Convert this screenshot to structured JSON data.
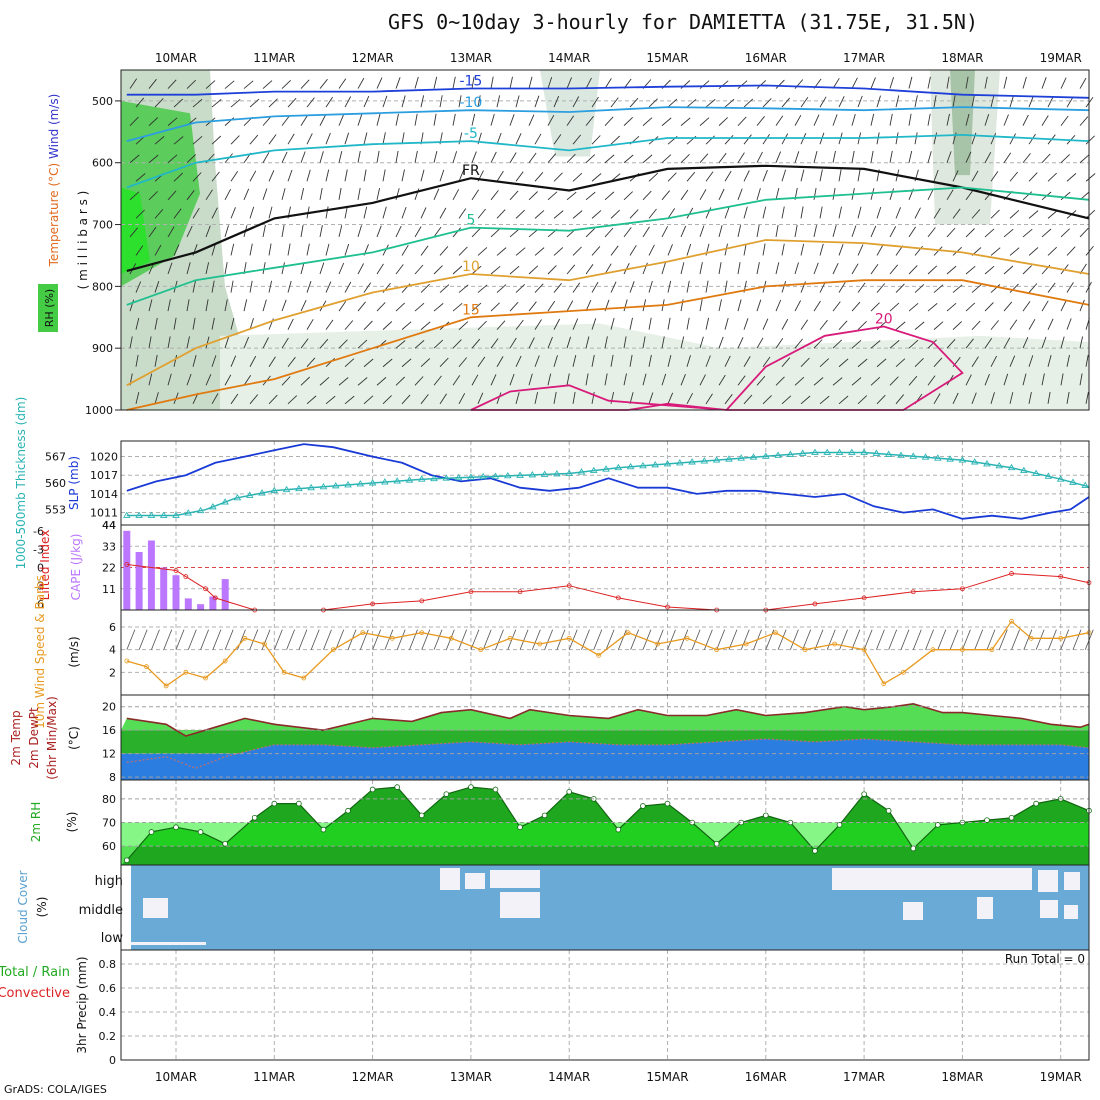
{
  "title": "GFS 0~10day 3-hourly for DAMIETTA (31.75E, 31.5N)",
  "credit": "GrADS: COLA/IGES",
  "colors": {
    "rh_green": "#33cc33",
    "temp_orange": "#e08a1e",
    "slp_blue": "#1a3ad6",
    "thickness_cyan": "#2ab3b3",
    "cape_purple": "#bb77ff",
    "li_red": "#dd2222",
    "wind_orange": "#e89a20",
    "cloud_blue": "#6aaad6",
    "cloud_white": "#f2f2f8",
    "rh2m_dark": "#1fa81f",
    "rh2m_light": "#44ee44"
  },
  "chart_data": [
    {
      "type": "line",
      "panel": "upper_air",
      "dates": [
        "10MAR",
        "11MAR",
        "12MAR",
        "13MAR",
        "14MAR",
        "15MAR",
        "16MAR",
        "17MAR",
        "18MAR",
        "19MAR"
      ],
      "ylabel_parts": [
        "RH (%)",
        "Temperature (°C)",
        "Wind (m/s)"
      ],
      "yunit": "( m i l l i b a r s )",
      "yticks": [
        "500",
        "600",
        "700",
        "800",
        "900",
        "1000"
      ],
      "ylim": [
        1000,
        450
      ],
      "contours": [
        {
          "name": "-15",
          "color": "#1e40d8",
          "x": [
            9.5,
            10.2,
            11,
            12,
            13,
            14,
            15,
            16,
            17,
            18,
            19.3
          ],
          "y": [
            490,
            490,
            485,
            485,
            480,
            480,
            477,
            475,
            480,
            490,
            495
          ]
        },
        {
          "name": "-10",
          "color": "#2b9ee0",
          "x": [
            9.5,
            10.2,
            11,
            12,
            13,
            14,
            15,
            16,
            17,
            18,
            19.3
          ],
          "y": [
            565,
            535,
            525,
            520,
            515,
            518,
            510,
            512,
            515,
            510,
            515
          ]
        },
        {
          "name": "-5",
          "color": "#20b8c8",
          "x": [
            9.5,
            10.2,
            11,
            12,
            13,
            14,
            15,
            16,
            17,
            18,
            19.3
          ],
          "y": [
            640,
            600,
            580,
            570,
            565,
            580,
            560,
            560,
            560,
            555,
            565
          ]
        },
        {
          "name": "FR",
          "color": "#111111",
          "x": [
            9.5,
            10.2,
            11,
            12,
            13,
            14,
            15,
            16,
            17,
            18,
            19.3
          ],
          "y": [
            775,
            745,
            690,
            665,
            625,
            645,
            610,
            605,
            610,
            640,
            690
          ]
        },
        {
          "name": "5",
          "color": "#1fbf90",
          "x": [
            9.5,
            10.2,
            11,
            12,
            13,
            14,
            15,
            16,
            17,
            18,
            19.3
          ],
          "y": [
            830,
            790,
            770,
            745,
            705,
            710,
            690,
            660,
            650,
            640,
            660
          ]
        },
        {
          "name": "10",
          "color": "#e0a030",
          "x": [
            9.5,
            10.2,
            11,
            12,
            13,
            14,
            15,
            16,
            17,
            18,
            19.3
          ],
          "y": [
            960,
            900,
            855,
            810,
            780,
            790,
            760,
            725,
            730,
            745,
            780
          ]
        },
        {
          "name": "15",
          "color": "#e07a10",
          "x": [
            9.5,
            10.2,
            11,
            12,
            13,
            14,
            15,
            16,
            17,
            18,
            19.3
          ],
          "y": [
            1000,
            975,
            950,
            900,
            850,
            840,
            830,
            800,
            790,
            790,
            830
          ]
        },
        {
          "name": "20",
          "color": "#d81a7a",
          "x": [
            13,
            13.4,
            14,
            14.4,
            15.6,
            16,
            16.6,
            17.2,
            17.7,
            18,
            17.4,
            16.5,
            15.6,
            15,
            14.6,
            13.6
          ],
          "y": [
            1000,
            970,
            960,
            985,
            1000,
            930,
            880,
            865,
            890,
            940,
            1000,
            1000,
            1000,
            990,
            1000,
            1000
          ]
        }
      ]
    },
    {
      "type": "line",
      "panel": "slp_thickness",
      "ylabel_left": "1000-500mb Thickness (dm)",
      "ylabel_right": "SLP (mb)",
      "yticks_left": [
        "567",
        "560",
        "553"
      ],
      "yticks_right": [
        "1020",
        "1017",
        "1014",
        "1011"
      ],
      "series": [
        {
          "name": "SLP (mb)",
          "x": [
            9.5,
            9.8,
            10.1,
            10.4,
            10.7,
            11,
            11.3,
            11.6,
            12,
            12.3,
            12.6,
            12.9,
            13.2,
            13.5,
            13.8,
            14.1,
            14.4,
            14.7,
            15,
            15.3,
            15.6,
            15.9,
            16.2,
            16.5,
            16.8,
            17.1,
            17.4,
            17.7,
            18,
            18.3,
            18.6,
            18.9,
            19.1,
            19.3
          ],
          "y": [
            1014.5,
            1016,
            1017,
            1019,
            1020,
            1021,
            1022,
            1021.5,
            1020,
            1019,
            1017,
            1016,
            1016.5,
            1015,
            1014.5,
            1015,
            1016.5,
            1015,
            1015,
            1014,
            1014.5,
            1014.5,
            1014,
            1013.5,
            1014,
            1012,
            1011,
            1011.5,
            1010,
            1010.5,
            1010,
            1011,
            1011.5,
            1013.5
          ]
        },
        {
          "name": "Thickness (dm)",
          "x": [
            9.5,
            10,
            10.3,
            10.6,
            11,
            11.5,
            12,
            12.5,
            13,
            13.5,
            14,
            14.5,
            15,
            15.5,
            16,
            16.5,
            17,
            17.5,
            18,
            18.5,
            19,
            19.3
          ],
          "y": [
            551.5,
            551.5,
            553,
            556,
            558,
            559,
            560,
            561,
            561.5,
            562,
            562.5,
            564,
            565,
            566,
            567,
            568,
            568,
            567,
            566,
            564,
            561,
            559
          ]
        }
      ]
    },
    {
      "type": "bar",
      "panel": "cape_li",
      "ylabel_left": "Lifted Index",
      "ylabel_right": "CAPE (J/kg)",
      "yticks_cape": [
        "44",
        "33",
        "22",
        "11"
      ],
      "yticks_li": [
        "-6",
        "-3",
        "0",
        "3",
        "6"
      ],
      "cape": {
        "x": [
          9.5,
          9.625,
          9.75,
          9.875,
          10,
          10.125,
          10.25,
          10.375,
          10.5
        ],
        "y": [
          41,
          30,
          36,
          22,
          18,
          6,
          3,
          7,
          16
        ]
      },
      "lifted_index": {
        "x": [
          9.5,
          10,
          10.1,
          10.3,
          10.4,
          10.8,
          11.5,
          12,
          12.5,
          13,
          13.5,
          14,
          14.5,
          15,
          15.5,
          16,
          16.5,
          17,
          17.5,
          18,
          18.5,
          19,
          19.3
        ],
        "y": [
          -0.5,
          0.5,
          1.5,
          3.5,
          5,
          7,
          7,
          6,
          5.5,
          4,
          4,
          3,
          5,
          6.5,
          7,
          7,
          6,
          5,
          4,
          3.5,
          1,
          1.5,
          2.5
        ]
      }
    },
    {
      "type": "line",
      "panel": "wind10m",
      "ylabel": "10m Wind Speed & Barbs",
      "yunit": "(m/s)",
      "yticks": [
        "6",
        "4",
        "2"
      ],
      "series": [
        {
          "name": "10m Wind Speed",
          "x": [
            9.5,
            9.7,
            9.9,
            10.1,
            10.3,
            10.5,
            10.7,
            10.9,
            11.1,
            11.3,
            11.6,
            11.9,
            12.2,
            12.5,
            12.8,
            13.1,
            13.4,
            13.7,
            14,
            14.3,
            14.6,
            14.9,
            15.2,
            15.5,
            15.8,
            16.1,
            16.4,
            16.7,
            17,
            17.2,
            17.4,
            17.7,
            18,
            18.3,
            18.5,
            18.7,
            19,
            19.3
          ],
          "y": [
            3,
            2.5,
            0.8,
            2,
            1.5,
            3,
            5,
            4.5,
            2,
            1.5,
            4,
            5.5,
            5,
            5.5,
            5,
            4,
            5,
            4.5,
            5,
            3.5,
            5.5,
            4.5,
            5,
            4,
            4.5,
            5.5,
            4,
            4.5,
            4,
            1,
            2,
            4,
            4,
            4,
            6.5,
            5,
            5,
            5.5
          ]
        }
      ]
    },
    {
      "type": "area",
      "panel": "temp_dew",
      "ylabel": "2m Temp 2m DewPt (6hr Min/Max)",
      "yunit": "(°C)",
      "yticks": [
        "20",
        "16",
        "12",
        "8"
      ],
      "series": [
        {
          "name": "2m Temp",
          "x": [
            9.5,
            9.9,
            10.1,
            10.4,
            10.7,
            11,
            11.5,
            12,
            12.4,
            12.7,
            13,
            13.4,
            13.6,
            14,
            14.4,
            14.7,
            15,
            15.4,
            15.7,
            16,
            16.4,
            16.8,
            17,
            17.3,
            17.5,
            17.8,
            18,
            18.3,
            18.6,
            18.9,
            19.2,
            19.3
          ],
          "y": [
            18,
            17,
            15,
            16.5,
            18,
            17,
            16,
            18,
            17.5,
            19,
            19.5,
            18,
            19.5,
            18.5,
            18,
            19.5,
            18.5,
            18.5,
            19.5,
            18.5,
            19,
            20,
            19.5,
            20,
            20.5,
            19,
            19,
            18.5,
            18,
            17,
            16.5,
            17
          ]
        },
        {
          "name": "2m DewPt",
          "x": [
            9.5,
            9.9,
            10.2,
            10.5,
            11,
            11.5,
            12,
            12.5,
            13,
            13.5,
            14,
            14.5,
            15,
            15.5,
            16,
            16.5,
            17,
            17.5,
            18,
            18.5,
            19,
            19.3
          ],
          "y": [
            10.5,
            11.5,
            9.5,
            11.5,
            13.5,
            13.5,
            13,
            13.5,
            14,
            13.5,
            14,
            13.5,
            13.5,
            14,
            14.5,
            14,
            14.5,
            14,
            13.5,
            13.5,
            13.5,
            13
          ]
        }
      ]
    },
    {
      "type": "area",
      "panel": "rh2m",
      "ylabel": "2m RH",
      "yunit": "(%)",
      "yticks": [
        "80",
        "70",
        "60"
      ],
      "series": [
        {
          "name": "2m RH",
          "x": [
            9.5,
            9.75,
            10,
            10.25,
            10.5,
            10.8,
            11,
            11.25,
            11.5,
            11.75,
            12,
            12.25,
            12.5,
            12.75,
            13,
            13.25,
            13.5,
            13.75,
            14,
            14.25,
            14.5,
            14.75,
            15,
            15.25,
            15.5,
            15.75,
            16,
            16.25,
            16.5,
            16.75,
            17,
            17.25,
            17.5,
            17.75,
            18,
            18.25,
            18.5,
            18.75,
            19,
            19.3
          ],
          "y": [
            54,
            66,
            68,
            66,
            61,
            72,
            78,
            78,
            67,
            75,
            84,
            85,
            73,
            82,
            85,
            84,
            68,
            73,
            83,
            80,
            67,
            77,
            78,
            70,
            61,
            70,
            73,
            70,
            58,
            69,
            82,
            75,
            59,
            69,
            70,
            71,
            72,
            78,
            80,
            75
          ]
        }
      ]
    },
    {
      "type": "heatmap",
      "panel": "cloud",
      "ylabel": "Cloud Cover",
      "yunit": "(%)",
      "levels": [
        "high",
        "middle",
        "low"
      ]
    },
    {
      "type": "bar",
      "panel": "precip",
      "ylabel_left": "Total / Rain",
      "ylabel_left2": "Convective",
      "ylabel_unit": "3hr Precip (mm)",
      "yticks": [
        "0.8",
        "0.6",
        "0.4",
        "0.2",
        "0"
      ],
      "ylim": [
        0,
        0.9
      ],
      "run_total": "Run Total = 0",
      "values": []
    }
  ]
}
